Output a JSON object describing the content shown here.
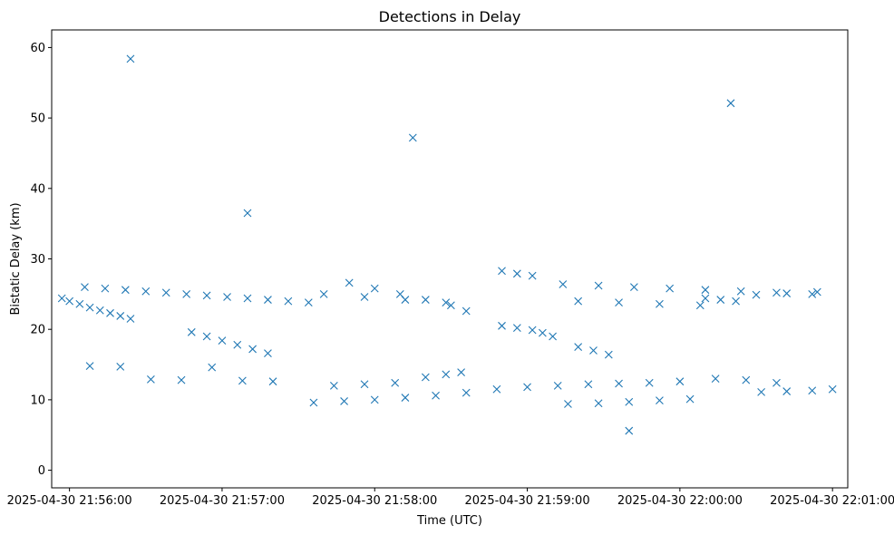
{
  "chart_data": {
    "type": "scatter",
    "title": "Detections in Delay",
    "xlabel": "Time (UTC)",
    "ylabel": "Bistatic Delay (km)",
    "x_unit": "datetime",
    "xlim": [
      "2025-04-30 21:55:53",
      "2025-04-30 22:01:06"
    ],
    "ylim": [
      -2.5,
      62.5
    ],
    "xticks": [
      "2025-04-30 21:56:00",
      "2025-04-30 21:57:00",
      "2025-04-30 21:58:00",
      "2025-04-30 21:59:00",
      "2025-04-30 22:00:00",
      "2025-04-30 22:01:00"
    ],
    "yticks": [
      0,
      10,
      20,
      30,
      40,
      50,
      60
    ],
    "marker": "x",
    "color": "#1f77b4",
    "grid": false,
    "series": [
      {
        "points": [
          [
            "2025-04-30 21:55:57",
            24.4
          ],
          [
            "2025-04-30 21:56:00",
            24.0
          ],
          [
            "2025-04-30 21:56:04",
            23.6
          ],
          [
            "2025-04-30 21:56:08",
            23.1
          ],
          [
            "2025-04-30 21:56:12",
            22.7
          ],
          [
            "2025-04-30 21:56:16",
            22.3
          ],
          [
            "2025-04-30 21:56:20",
            21.9
          ],
          [
            "2025-04-30 21:56:24",
            21.5
          ],
          [
            "2025-04-30 21:56:06",
            26.0
          ],
          [
            "2025-04-30 21:56:14",
            25.8
          ],
          [
            "2025-04-30 21:56:22",
            25.6
          ],
          [
            "2025-04-30 21:56:30",
            25.4
          ],
          [
            "2025-04-30 21:56:38",
            25.2
          ],
          [
            "2025-04-30 21:56:46",
            25.0
          ],
          [
            "2025-04-30 21:56:54",
            24.8
          ],
          [
            "2025-04-30 21:57:02",
            24.6
          ],
          [
            "2025-04-30 21:57:10",
            24.4
          ],
          [
            "2025-04-30 21:57:18",
            24.2
          ],
          [
            "2025-04-30 21:57:26",
            24.0
          ],
          [
            "2025-04-30 21:57:34",
            23.8
          ],
          [
            "2025-04-30 21:56:48",
            19.6
          ],
          [
            "2025-04-30 21:56:54",
            19.0
          ],
          [
            "2025-04-30 21:57:00",
            18.4
          ],
          [
            "2025-04-30 21:57:06",
            17.8
          ],
          [
            "2025-04-30 21:57:12",
            17.2
          ],
          [
            "2025-04-30 21:57:18",
            16.6
          ],
          [
            "2025-04-30 21:56:08",
            14.8
          ],
          [
            "2025-04-30 21:56:20",
            14.7
          ],
          [
            "2025-04-30 21:56:32",
            12.9
          ],
          [
            "2025-04-30 21:56:44",
            12.8
          ],
          [
            "2025-04-30 21:56:56",
            14.6
          ],
          [
            "2025-04-30 21:57:08",
            12.7
          ],
          [
            "2025-04-30 21:57:20",
            12.6
          ],
          [
            "2025-04-30 21:57:36",
            9.6
          ],
          [
            "2025-04-30 21:57:48",
            9.8
          ],
          [
            "2025-04-30 21:58:00",
            10.0
          ],
          [
            "2025-04-30 21:58:12",
            10.3
          ],
          [
            "2025-04-30 21:58:24",
            10.6
          ],
          [
            "2025-04-30 21:58:36",
            11.0
          ],
          [
            "2025-04-30 21:58:48",
            11.5
          ],
          [
            "2025-04-30 21:57:44",
            12.0
          ],
          [
            "2025-04-30 21:57:56",
            12.2
          ],
          [
            "2025-04-30 21:58:08",
            12.4
          ],
          [
            "2025-04-30 21:58:20",
            13.2
          ],
          [
            "2025-04-30 21:58:28",
            13.6
          ],
          [
            "2025-04-30 21:58:34",
            13.9
          ],
          [
            "2025-04-30 21:57:50",
            26.6
          ],
          [
            "2025-04-30 21:58:00",
            25.8
          ],
          [
            "2025-04-30 21:58:10",
            25.0
          ],
          [
            "2025-04-30 21:58:20",
            24.2
          ],
          [
            "2025-04-30 21:58:30",
            23.4
          ],
          [
            "2025-04-30 21:58:36",
            22.6
          ],
          [
            "2025-04-30 21:57:40",
            25.0
          ],
          [
            "2025-04-30 21:57:56",
            24.6
          ],
          [
            "2025-04-30 21:58:12",
            24.2
          ],
          [
            "2025-04-30 21:58:28",
            23.8
          ],
          [
            "2025-04-30 21:58:50",
            20.5
          ],
          [
            "2025-04-30 21:58:56",
            20.2
          ],
          [
            "2025-04-30 21:59:02",
            19.9
          ],
          [
            "2025-04-30 21:59:06",
            19.5
          ],
          [
            "2025-04-30 21:59:10",
            19.0
          ],
          [
            "2025-04-30 21:58:50",
            28.3
          ],
          [
            "2025-04-30 21:58:56",
            27.9
          ],
          [
            "2025-04-30 21:59:02",
            27.6
          ],
          [
            "2025-04-30 21:59:00",
            11.8
          ],
          [
            "2025-04-30 21:59:12",
            12.0
          ],
          [
            "2025-04-30 21:59:24",
            12.2
          ],
          [
            "2025-04-30 21:59:36",
            12.3
          ],
          [
            "2025-04-30 21:59:48",
            12.4
          ],
          [
            "2025-04-30 22:00:00",
            12.6
          ],
          [
            "2025-04-30 21:59:16",
            9.4
          ],
          [
            "2025-04-30 21:59:28",
            9.5
          ],
          [
            "2025-04-30 21:59:40",
            9.7
          ],
          [
            "2025-04-30 21:59:52",
            9.9
          ],
          [
            "2025-04-30 22:00:04",
            10.1
          ],
          [
            "2025-04-30 21:59:14",
            26.4
          ],
          [
            "2025-04-30 21:59:28",
            26.2
          ],
          [
            "2025-04-30 21:59:42",
            26.0
          ],
          [
            "2025-04-30 21:59:56",
            25.8
          ],
          [
            "2025-04-30 22:00:10",
            25.6
          ],
          [
            "2025-04-30 22:00:24",
            25.4
          ],
          [
            "2025-04-30 22:00:38",
            25.2
          ],
          [
            "2025-04-30 22:00:52",
            25.0
          ],
          [
            "2025-04-30 21:59:20",
            24.0
          ],
          [
            "2025-04-30 21:59:36",
            23.8
          ],
          [
            "2025-04-30 21:59:52",
            23.6
          ],
          [
            "2025-04-30 22:00:08",
            23.4
          ],
          [
            "2025-04-30 21:59:20",
            17.5
          ],
          [
            "2025-04-30 21:59:26",
            17.0
          ],
          [
            "2025-04-30 21:59:32",
            16.4
          ],
          [
            "2025-04-30 22:00:10",
            24.4
          ],
          [
            "2025-04-30 22:00:16",
            24.2
          ],
          [
            "2025-04-30 22:00:22",
            24.0
          ],
          [
            "2025-04-30 22:00:14",
            13.0
          ],
          [
            "2025-04-30 22:00:26",
            12.8
          ],
          [
            "2025-04-30 22:00:38",
            12.4
          ],
          [
            "2025-04-30 22:00:32",
            11.1
          ],
          [
            "2025-04-30 22:00:42",
            11.2
          ],
          [
            "2025-04-30 22:00:52",
            11.3
          ],
          [
            "2025-04-30 22:01:00",
            11.5
          ],
          [
            "2025-04-30 22:00:30",
            24.9
          ],
          [
            "2025-04-30 22:00:42",
            25.1
          ],
          [
            "2025-04-30 22:00:54",
            25.3
          ],
          [
            "2025-04-30 21:56:24",
            58.4
          ],
          [
            "2025-04-30 21:57:10",
            36.5
          ],
          [
            "2025-04-30 21:58:15",
            47.2
          ],
          [
            "2025-04-30 21:59:40",
            5.6
          ],
          [
            "2025-04-30 22:00:20",
            52.1
          ]
        ]
      }
    ]
  }
}
